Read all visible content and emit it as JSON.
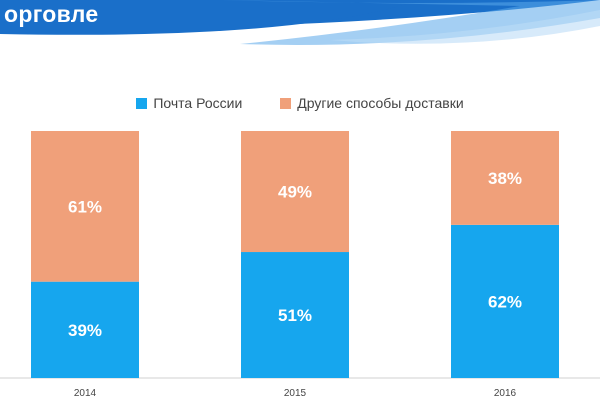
{
  "header": {
    "title": "орговле"
  },
  "colors": {
    "post": "#16a6ee",
    "other": "#f0a07a",
    "banner": "#1a6fc9"
  },
  "chart_data": {
    "type": "bar",
    "stacked": true,
    "categories": [
      "2014",
      "2015",
      "2016"
    ],
    "series": [
      {
        "name": "Почта России",
        "values": [
          39,
          51,
          62
        ],
        "labels": [
          "39%",
          "51%",
          "62%"
        ]
      },
      {
        "name": "Другие способы доставки",
        "values": [
          61,
          49,
          38
        ],
        "labels": [
          "61%",
          "49%",
          "38%"
        ]
      }
    ],
    "ylim": [
      0,
      100
    ],
    "legend": "top-center",
    "grid": false
  }
}
